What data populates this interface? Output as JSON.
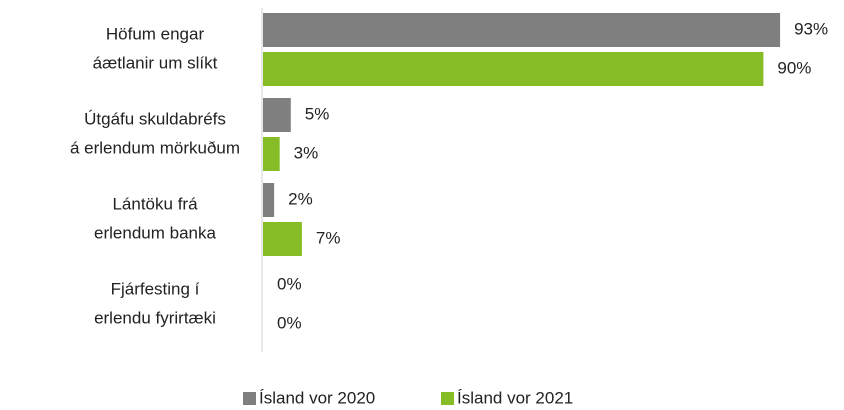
{
  "chart_data": {
    "type": "bar",
    "orientation": "horizontal",
    "categories": [
      [
        "Höfum engar",
        "áætlanir um slíkt"
      ],
      [
        "Útgáfu skuldabréfs",
        "á erlendum mörkuðum"
      ],
      [
        "Lántöku frá",
        "erlendum banka"
      ],
      [
        "Fjárfesting í",
        "erlendu fyrirtæki"
      ]
    ],
    "series": [
      {
        "name": "Ísland vor 2020",
        "color": "#7f7f7f",
        "values": [
          93,
          5,
          2,
          0
        ],
        "value_labels": [
          "93%",
          "5%",
          "2%",
          "0%"
        ]
      },
      {
        "name": "Ísland vor 2021",
        "color": "#86bc25",
        "values": [
          90,
          3,
          7,
          0
        ],
        "value_labels": [
          "90%",
          "3%",
          "7%",
          "0%"
        ]
      }
    ],
    "legend": "bottom"
  }
}
